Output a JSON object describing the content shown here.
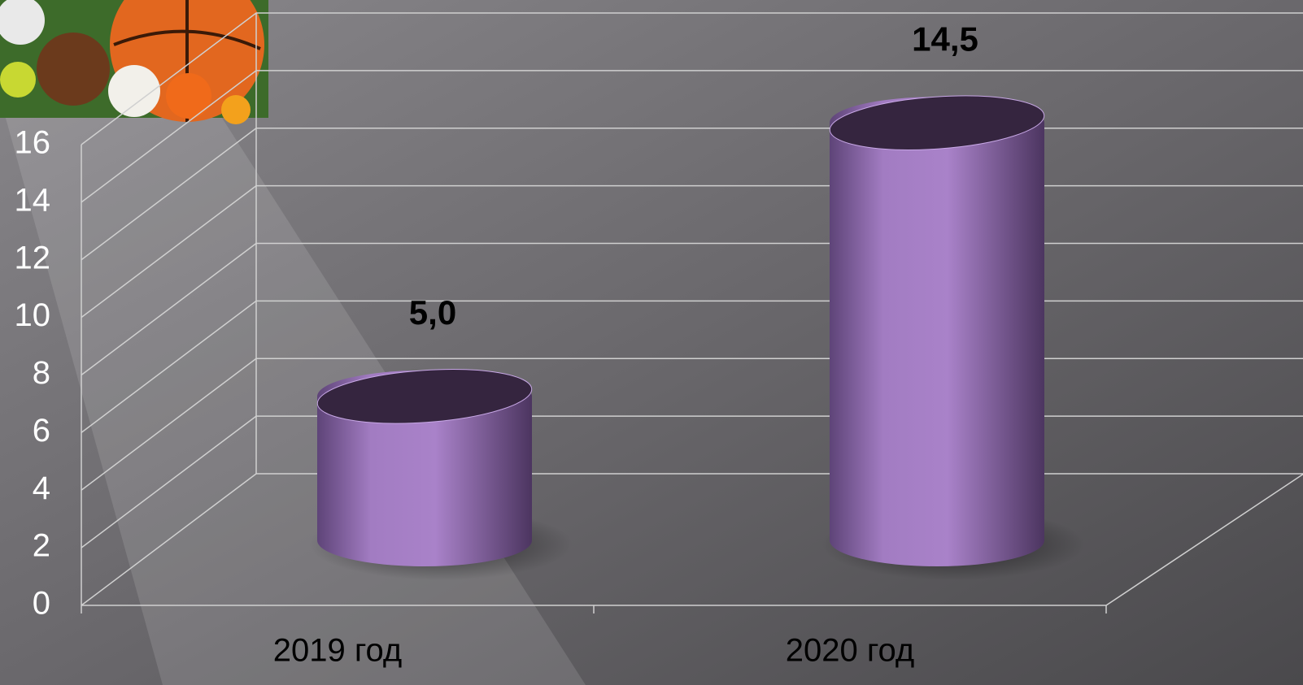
{
  "chart_data": {
    "type": "cylinder",
    "categories": [
      "2019 год",
      "2020 год"
    ],
    "values": [
      5.0,
      14.5
    ],
    "value_labels": [
      "5,0",
      "14,5"
    ],
    "color": "#a67cc6",
    "ylim": [
      0,
      16
    ],
    "yticks": [
      0,
      2,
      4,
      6,
      8,
      10,
      12,
      14,
      16
    ],
    "grid": true
  }
}
